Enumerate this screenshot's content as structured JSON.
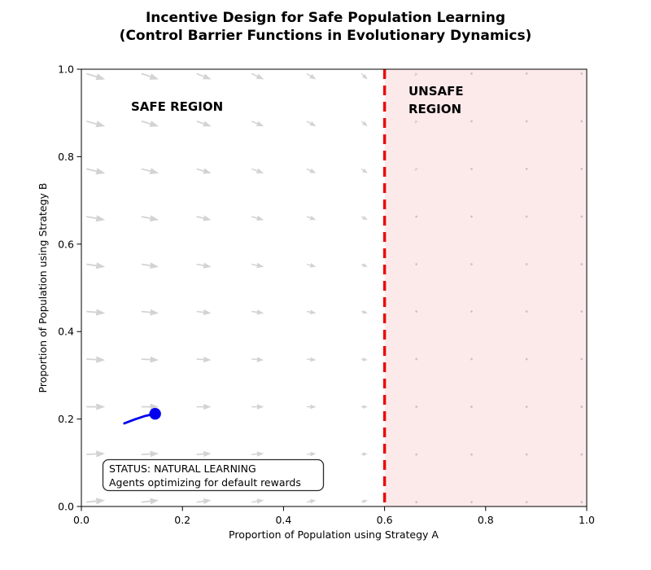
{
  "title": {
    "line1": "Incentive Design for Safe Population Learning",
    "line2": "(Control Barrier Functions in Evolutionary Dynamics)"
  },
  "axes": {
    "xlabel": "Proportion of Population using Strategy A",
    "ylabel": "Proportion of Population using Strategy B",
    "xtick_labels": [
      "0.0",
      "0.2",
      "0.4",
      "0.6",
      "0.8",
      "1.0"
    ],
    "ytick_labels": [
      "0.0",
      "0.2",
      "0.4",
      "0.6",
      "0.8",
      "1.0"
    ],
    "xtick_values": [
      0.0,
      0.2,
      0.4,
      0.6,
      0.8,
      1.0
    ],
    "ytick_values": [
      0.0,
      0.2,
      0.4,
      0.6,
      0.8,
      1.0
    ],
    "xlim": [
      0.0,
      1.0
    ],
    "ylim": [
      0.0,
      1.0
    ]
  },
  "regions": {
    "safe_label": "SAFE REGION",
    "safe_color": "#008000",
    "unsafe_label_line1": "UNSAFE",
    "unsafe_label_line2": "REGION",
    "unsafe_color": "#ea0b0b",
    "unsafe_fill": "#fceaeb",
    "barrier_x": 0.6,
    "barrier_color": "#ea0b0b"
  },
  "status_box": {
    "line1": "STATUS: NATURAL LEARNING",
    "line2": "Agents optimizing for default rewards",
    "border_color": "#2a2a2a",
    "fill": "#ffffff"
  },
  "chart_data": {
    "type": "quiver",
    "title": "Incentive Design for Safe Population Learning (Control Barrier Functions in Evolutionary Dynamics)",
    "xlabel": "Proportion of Population using Strategy A",
    "ylabel": "Proportion of Population using Strategy B",
    "xlim": [
      0.0,
      1.0
    ],
    "ylim": [
      0.0,
      1.0
    ],
    "grid_on": false,
    "barrier_x": 0.6,
    "safe_region_x": [
      0.0,
      0.6
    ],
    "unsafe_region_x": [
      0.6,
      1.0
    ],
    "quiver_grid": [
      0.01,
      0.119,
      0.228,
      0.337,
      0.446,
      0.554,
      0.663,
      0.772,
      0.881,
      0.99
    ],
    "u_by_column": [
      1.0,
      0.92,
      0.78,
      0.65,
      0.5,
      0.34,
      -0.1,
      0.03,
      0.03,
      0.03
    ],
    "v_by_row": [
      0.1,
      0.05,
      0.0,
      -0.05,
      -0.09,
      -0.14,
      -0.18,
      -0.23,
      -0.27,
      -0.31
    ],
    "v_scale_by_column": [
      1,
      1,
      1,
      1,
      1,
      1,
      0.5,
      0.08,
      0.08,
      0.08
    ],
    "arrow_color": "#d3d3d3",
    "dot_color": "#c8c5c5",
    "trajectory": [
      [
        0.085,
        0.19
      ],
      [
        0.105,
        0.199
      ],
      [
        0.126,
        0.207
      ],
      [
        0.146,
        0.212
      ]
    ],
    "current_state": [
      0.146,
      0.212
    ],
    "trajectory_color": "#0000ee",
    "annotations": [
      "SAFE REGION",
      "UNSAFE REGION",
      "STATUS: NATURAL LEARNING",
      "Agents optimizing for default rewards"
    ]
  }
}
